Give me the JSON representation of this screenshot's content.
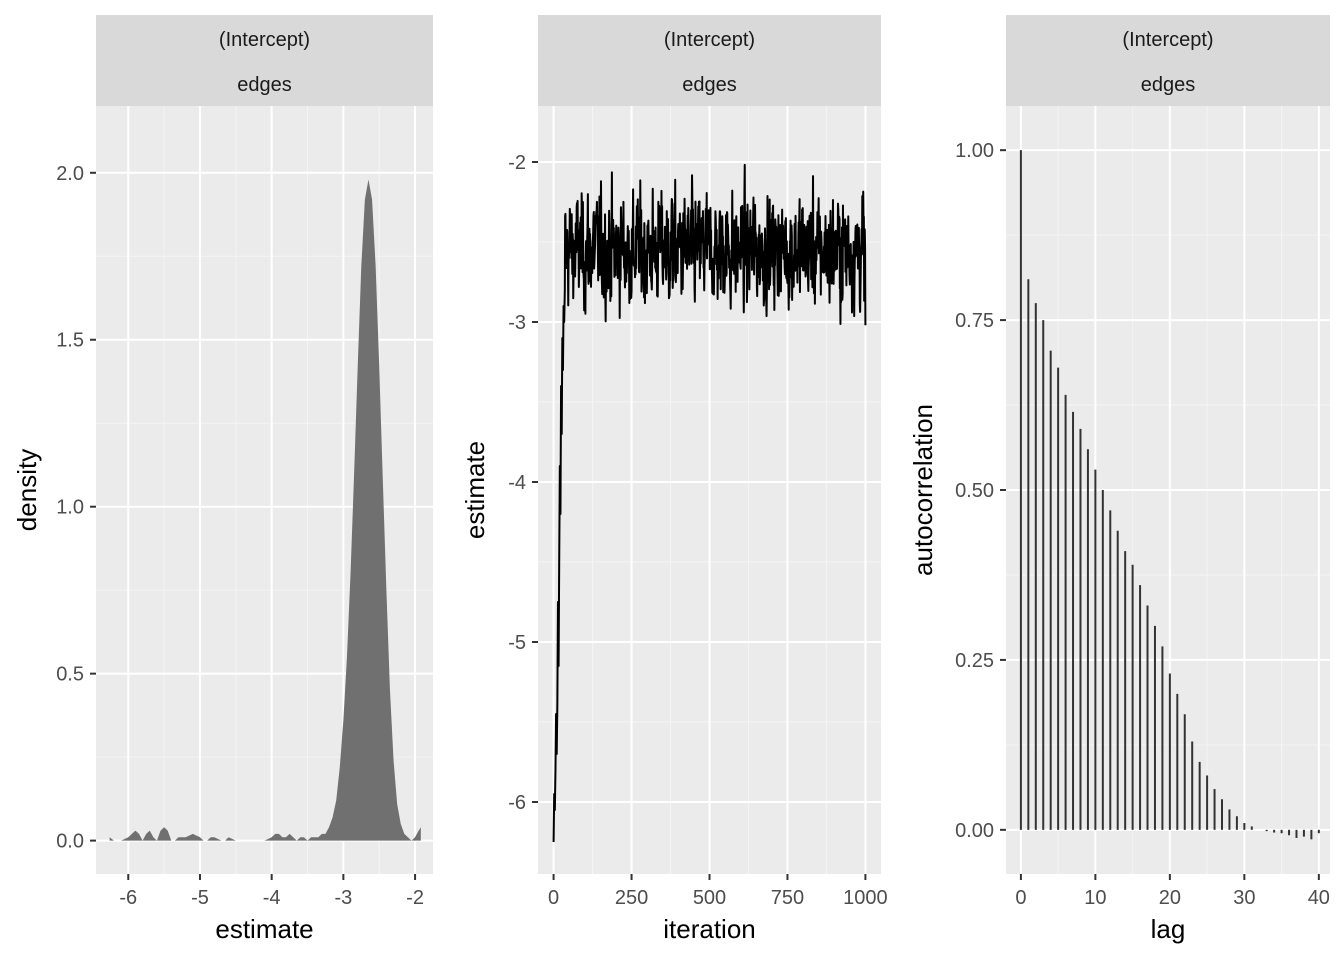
{
  "chart_data": [
    {
      "type": "area",
      "strip_labels": [
        "(Intercept)",
        "edges"
      ],
      "xlabel": "estimate",
      "ylabel": "density",
      "xlim": [
        -6.45,
        -1.75
      ],
      "ylim": [
        -0.1,
        2.2
      ],
      "xticks": [
        -6,
        -5,
        -4,
        -3,
        -2
      ],
      "xtick_labels": [
        "-6",
        "-5",
        "-4",
        "-3",
        "-2"
      ],
      "yticks": [
        0.0,
        0.5,
        1.0,
        1.5,
        2.0
      ],
      "ytick_labels": [
        "0.0",
        "0.5",
        "1.0",
        "1.5",
        "2.0"
      ],
      "fill_color": "#707070",
      "x": [
        -6.26,
        -6.2,
        -6.15,
        -6.1,
        -6.0,
        -5.95,
        -5.9,
        -5.85,
        -5.8,
        -5.75,
        -5.7,
        -5.65,
        -5.6,
        -5.55,
        -5.5,
        -5.45,
        -5.4,
        -5.35,
        -5.3,
        -5.2,
        -5.1,
        -5.0,
        -4.95,
        -4.9,
        -4.85,
        -4.8,
        -4.7,
        -4.65,
        -4.6,
        -4.5,
        -4.45,
        -4.4,
        -4.3,
        -4.2,
        -4.1,
        -4.0,
        -3.95,
        -3.9,
        -3.85,
        -3.8,
        -3.75,
        -3.7,
        -3.65,
        -3.6,
        -3.55,
        -3.5,
        -3.45,
        -3.4,
        -3.35,
        -3.3,
        -3.25,
        -3.2,
        -3.15,
        -3.1,
        -3.05,
        -3.0,
        -2.95,
        -2.9,
        -2.85,
        -2.8,
        -2.75,
        -2.7,
        -2.65,
        -2.6,
        -2.55,
        -2.5,
        -2.45,
        -2.4,
        -2.35,
        -2.3,
        -2.25,
        -2.2,
        -2.15,
        -2.1,
        -2.05,
        -2.0,
        -1.95,
        -1.92
      ],
      "y": [
        0.01,
        0.0,
        0.0,
        0.0,
        0.01,
        0.02,
        0.03,
        0.02,
        0.0,
        0.02,
        0.03,
        0.01,
        0.0,
        0.03,
        0.04,
        0.03,
        0.0,
        0.0,
        0.01,
        0.01,
        0.02,
        0.01,
        0.0,
        0.0,
        0.01,
        0.01,
        0.0,
        0.0,
        0.01,
        0.0,
        0.0,
        0.0,
        0.0,
        0.0,
        0.0,
        0.01,
        0.02,
        0.02,
        0.01,
        0.01,
        0.02,
        0.01,
        0.0,
        0.01,
        0.01,
        0.0,
        0.01,
        0.01,
        0.01,
        0.02,
        0.02,
        0.04,
        0.07,
        0.12,
        0.22,
        0.36,
        0.55,
        0.8,
        1.1,
        1.42,
        1.72,
        1.92,
        1.98,
        1.92,
        1.72,
        1.42,
        1.08,
        0.75,
        0.45,
        0.24,
        0.11,
        0.05,
        0.02,
        0.01,
        0.0,
        0.01,
        0.03,
        0.04
      ]
    },
    {
      "type": "line",
      "strip_labels": [
        "(Intercept)",
        "edges"
      ],
      "xlabel": "iteration",
      "ylabel": "estimate",
      "xlim": [
        -50,
        1050
      ],
      "ylim": [
        -6.45,
        -1.65
      ],
      "xticks": [
        0,
        250,
        500,
        750,
        1000
      ],
      "xtick_labels": [
        "0",
        "250",
        "500",
        "750",
        "1000"
      ],
      "yticks": [
        -6,
        -5,
        -4,
        -3,
        -2
      ],
      "ytick_labels": [
        "-6",
        "-5",
        "-4",
        "-3",
        "-2"
      ],
      "line_color": "#000000",
      "trace": {
        "burn_in": [
          [
            0,
            -6.25
          ],
          [
            2,
            -5.95
          ],
          [
            4,
            -6.05
          ],
          [
            6,
            -5.8
          ],
          [
            8,
            -5.45
          ],
          [
            10,
            -5.7
          ],
          [
            12,
            -5.4
          ],
          [
            14,
            -4.75
          ],
          [
            16,
            -5.15
          ],
          [
            18,
            -4.5
          ],
          [
            20,
            -3.9
          ],
          [
            22,
            -4.2
          ],
          [
            24,
            -3.4
          ],
          [
            26,
            -3.7
          ],
          [
            28,
            -3.1
          ],
          [
            30,
            -3.3
          ],
          [
            32,
            -2.9
          ],
          [
            34,
            -3.0
          ],
          [
            36,
            -2.8
          ]
        ],
        "iterations": 1000,
        "mean": -2.55,
        "sd": 0.2,
        "min": -3.22,
        "max": -1.93,
        "final": -3.02
      }
    },
    {
      "type": "bar",
      "strip_labels": [
        "(Intercept)",
        "edges"
      ],
      "xlabel": "lag",
      "ylabel": "autocorrelation",
      "xlim": [
        -2,
        41.5
      ],
      "ylim": [
        -0.065,
        1.065
      ],
      "xticks": [
        0,
        10,
        20,
        30,
        40
      ],
      "xtick_labels": [
        "0",
        "10",
        "20",
        "30",
        "40"
      ],
      "yticks": [
        0.0,
        0.25,
        0.5,
        0.75,
        1.0
      ],
      "ytick_labels": [
        "0.00",
        "0.25",
        "0.50",
        "0.75",
        "1.00"
      ],
      "bar_color": "#333333",
      "lags": [
        0,
        1,
        2,
        3,
        4,
        5,
        6,
        7,
        8,
        9,
        10,
        11,
        12,
        13,
        14,
        15,
        16,
        17,
        18,
        19,
        20,
        21,
        22,
        23,
        24,
        25,
        26,
        27,
        28,
        29,
        30,
        31,
        32,
        33,
        34,
        35,
        36,
        37,
        38,
        39,
        40
      ],
      "values": [
        1.0,
        0.81,
        0.775,
        0.75,
        0.705,
        0.68,
        0.64,
        0.615,
        0.59,
        0.56,
        0.53,
        0.5,
        0.47,
        0.44,
        0.41,
        0.39,
        0.36,
        0.33,
        0.3,
        0.27,
        0.23,
        0.2,
        0.17,
        0.13,
        0.1,
        0.08,
        0.06,
        0.045,
        0.03,
        0.02,
        0.01,
        0.005,
        0.0,
        -0.002,
        -0.004,
        -0.005,
        -0.008,
        -0.012,
        -0.01,
        -0.014,
        -0.005
      ]
    }
  ]
}
